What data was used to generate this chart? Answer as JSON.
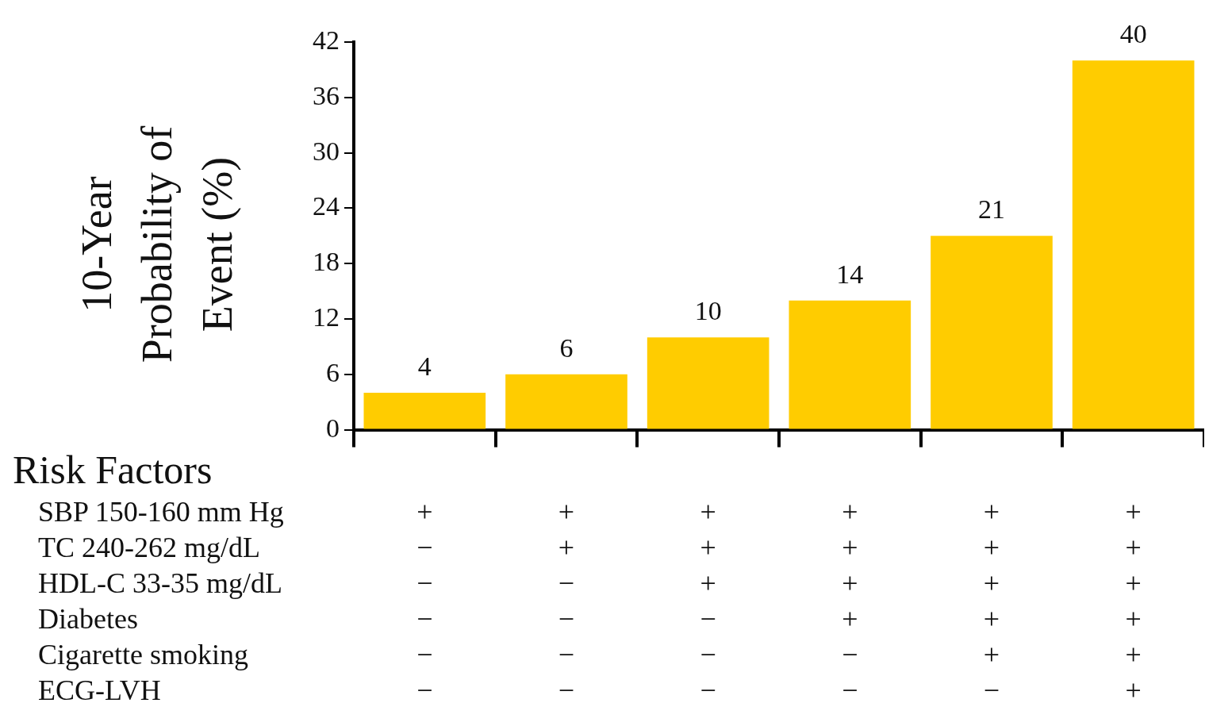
{
  "chart_data": {
    "type": "bar",
    "ylabel": "10-Year Probability of Event (%)",
    "xlabel": "Risk Factors",
    "categories": [
      null,
      null,
      null,
      null,
      null,
      null
    ],
    "values": [
      4,
      6,
      10,
      14,
      21,
      40
    ],
    "color": "#ffcc00",
    "ylim": [
      0,
      42
    ],
    "yticks": [
      0,
      6,
      12,
      18,
      24,
      30,
      36,
      42
    ],
    "grid": false,
    "data_labels": true,
    "legend": false,
    "annotations": [
      "SBP 150-160 mm Hg",
      "+",
      "+",
      "+",
      "+",
      "+",
      "+",
      "TC 240-262 mg/dL",
      "−",
      "+",
      "+",
      "+",
      "+",
      "+",
      "HDL-C 33-35 mg/dL",
      "−",
      "−",
      "+",
      "+",
      "+",
      "+",
      "Diabetes",
      "−",
      "−",
      "−",
      "+",
      "+",
      "+",
      "Cigarette smoking",
      "−",
      "−",
      "−",
      "−",
      "+",
      "+",
      "ECG-LVH",
      "−",
      "−",
      "−",
      "−",
      "−",
      "+"
    ]
  }
}
